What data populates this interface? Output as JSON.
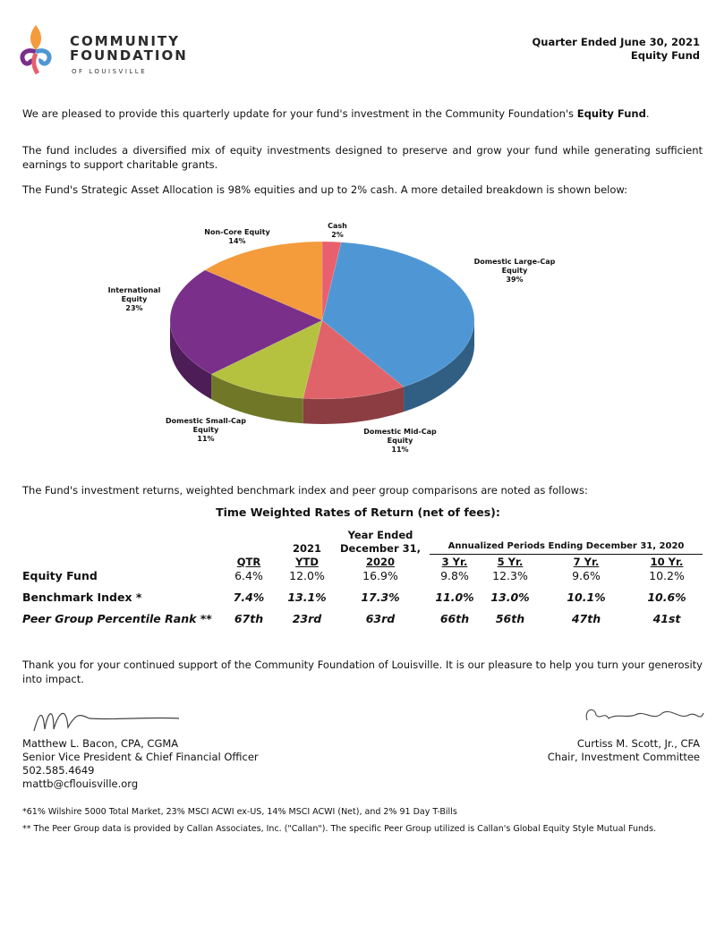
{
  "header": {
    "logo": {
      "line1": "COMMUNITY",
      "line2": "FOUNDATION",
      "line3": "OF LOUISVILLE"
    },
    "quarter": "Quarter Ended June 30, 2021",
    "fund": "Equity Fund"
  },
  "paragraphs": {
    "p1": {
      "text": "We are pleased to provide this quarterly update for your fund's investment in the Community Foundation's",
      "bold": "Equity Fund",
      "end": "."
    },
    "p2": "The fund includes a diversified mix of equity investments designed to preserve and grow your fund while generating sufficient earnings to support charitable grants.",
    "p3": "The Fund's Strategic Asset Allocation is 98% equities and up to 2% cash. A more detailed breakdown is shown below:",
    "p4": "The Fund's investment returns, weighted benchmark index and peer group comparisons are noted as follows:"
  },
  "chart_data": {
    "type": "pie",
    "categories": [
      "Cash",
      "Domestic Large-Cap Equity",
      "Domestic Mid-Cap Equity",
      "Domestic Small-Cap Equity",
      "International Equity",
      "Non-Core Equity"
    ],
    "values": [
      2,
      39,
      11,
      11,
      23,
      14
    ],
    "value_labels": [
      "2%",
      "39%",
      "11%",
      "11%",
      "23%",
      "14%"
    ],
    "colors": [
      "#e8606e",
      "#4f97d4",
      "#e0636a",
      "#b4c23f",
      "#7a2f8a",
      "#f49b3c"
    ]
  },
  "table": {
    "title": "Time Weighted Rates of Return (net of fees):",
    "group_header": "Annualized Periods Ending December 31, 2020",
    "columns": [
      [
        "QTR"
      ],
      [
        "2021",
        "YTD"
      ],
      [
        "Year Ended",
        "December 31,",
        "2020"
      ],
      [
        "3 Yr."
      ],
      [
        "5 Yr."
      ],
      [
        "7 Yr."
      ],
      [
        "10 Yr."
      ]
    ],
    "rows": [
      {
        "label": "Equity Fund",
        "values": [
          "6.4%",
          "12.0%",
          "16.9%",
          "9.8%",
          "12.3%",
          "9.6%",
          "10.2%"
        ]
      },
      {
        "label": "Benchmark Index *",
        "values": [
          "7.4%",
          "13.1%",
          "17.3%",
          "11.0%",
          "13.0%",
          "10.1%",
          "10.6%"
        ]
      },
      {
        "label": "Peer Group Percentile Rank **",
        "values": [
          "67th",
          "23rd",
          "63rd",
          "66th",
          "56th",
          "47th",
          "41st"
        ]
      }
    ]
  },
  "closing": "Thank you for your continued support of the Community Foundation of Louisville.  It is our pleasure to help you turn your generosity into impact.",
  "signatures": {
    "left": [
      "Matthew L. Bacon, CPA, CGMA",
      "Senior Vice President & Chief Financial Officer",
      "502.585.4649",
      "mattb@cflouisville.org"
    ],
    "right": [
      "Curtiss M. Scott, Jr., CFA",
      "Chair, Investment Committee"
    ]
  },
  "footnotes": [
    "*61% Wilshire 5000 Total Market, 23% MSCI ACWI ex-US, 14% MSCI ACWI (Net), and 2% 91 Day T-Bills",
    "** The Peer Group data is provided by Callan Associates, Inc. (\"Callan\").  The specific Peer Group utilized is Callan's Global Equity Style Mutual Funds."
  ]
}
